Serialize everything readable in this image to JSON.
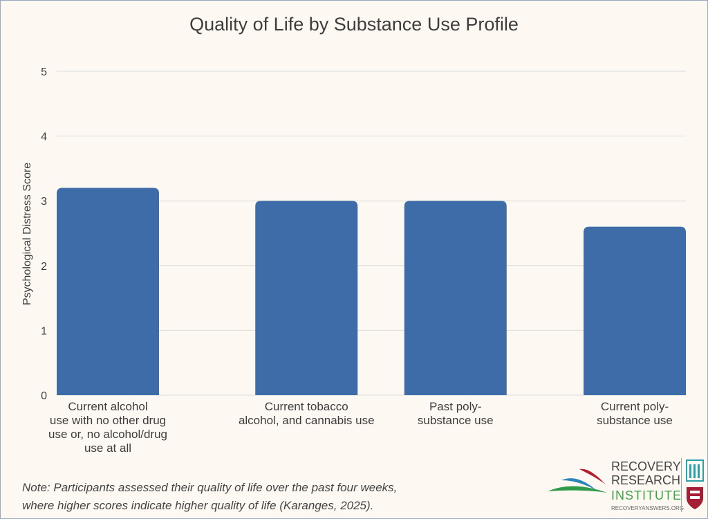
{
  "chart_data": {
    "type": "bar",
    "title": "Quality of Life by Substance Use Profile",
    "ylabel": "Psychological Distress Score",
    "xlabel": "",
    "ylim": [
      0,
      5
    ],
    "yticks": [
      "0",
      "1",
      "2",
      "3",
      "4",
      "5"
    ],
    "grid": true,
    "categories": [
      "Current alcohol\nuse with no other drug\nuse or, no alcohol/drug\nuse at all",
      "Current tobacco\nalcohol, and cannabis use",
      "Past poly-\nsubstance use",
      "Current poly-\nsubstance use"
    ],
    "values": [
      3.2,
      3.0,
      3.0,
      2.6
    ],
    "bar_color": "#3d6ca8"
  },
  "note": {
    "line1": "Note: Participants assessed their quality of life over the past four weeks,",
    "line2": "where higher scores indicate higher quality of life (Karanges, 2025)."
  },
  "logo": {
    "line1": "RECOVERY",
    "line2": "RESEARCH",
    "line3": "INSTITUTE",
    "url": "RECOVERYANSWERS.ORG"
  }
}
